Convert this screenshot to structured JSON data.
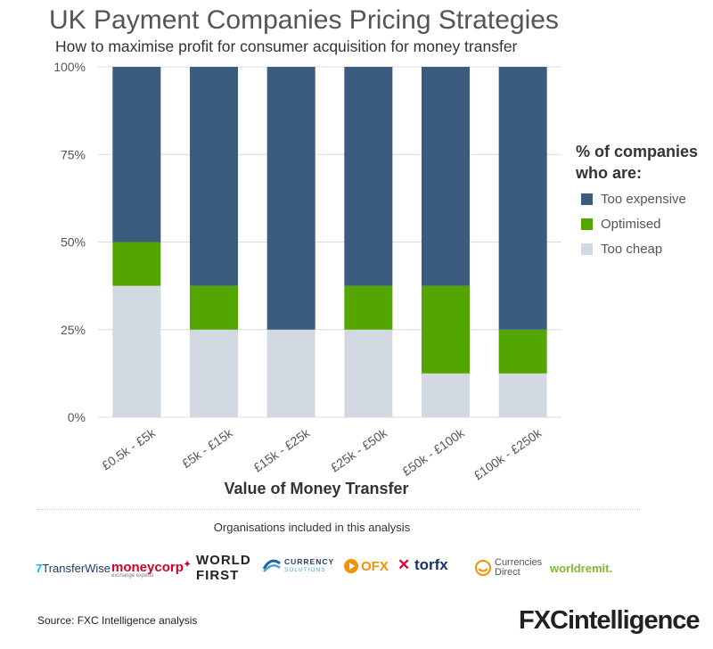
{
  "title": "UK Payment Companies Pricing Strategies",
  "subtitle": "How to maximise profit for consumer acquisition for money transfer",
  "chart_data": {
    "type": "bar",
    "stacked": true,
    "categories": [
      "£0.5k - £5k",
      "£5k - £15k",
      "£15k - £25k",
      "£25k - £50k",
      "£50k - £100k",
      "£100k - £250k"
    ],
    "series": [
      {
        "name": "Too cheap",
        "values": [
          37.5,
          25,
          25,
          25,
          12.5,
          12.5
        ],
        "color": "#d2d9e3"
      },
      {
        "name": "Optimised",
        "values": [
          12.5,
          12.5,
          0,
          12.5,
          25,
          12.5
        ],
        "color": "#53a600"
      },
      {
        "name": "Too expensive",
        "values": [
          50,
          62.5,
          75,
          62.5,
          62.5,
          75
        ],
        "color": "#3b5b7f"
      }
    ],
    "xlabel": "Value of Money Transfer",
    "ylabel": "",
    "ylim": [
      0,
      100
    ],
    "yticks": [
      "0%",
      "25%",
      "50%",
      "75%",
      "100%"
    ],
    "grid": true,
    "legend_position": "right"
  },
  "legend": {
    "title_line1": "% of companies",
    "title_line2": "who are:",
    "items": [
      {
        "label": "Too expensive",
        "color": "#3b5b7f"
      },
      {
        "label": "Optimised",
        "color": "#53a600"
      },
      {
        "label": "Too cheap",
        "color": "#d2d9e3"
      }
    ]
  },
  "orgs_label": "Organisations included in this analysis",
  "logos": {
    "transferwise": {
      "mark": "7",
      "text": "TransferWise"
    },
    "moneycorp": {
      "text": "moneycorp",
      "tagline": "exchange experts"
    },
    "worldfirst": {
      "line1": "WORLD",
      "line2": "FIRST"
    },
    "currency_solutions": {
      "line1": "CURRENCY",
      "line2": "SOLUTIONS"
    },
    "ofx": {
      "text": "OFX"
    },
    "torfx": {
      "text": "torfx"
    },
    "currencies_direct": {
      "line1": "Currencies",
      "line2": "Direct"
    },
    "worldremit": {
      "text": "worldremit."
    }
  },
  "source": "Source: FXC Intelligence analysis",
  "brand": {
    "prefix": "FXC",
    "suffix": "intelligence"
  }
}
